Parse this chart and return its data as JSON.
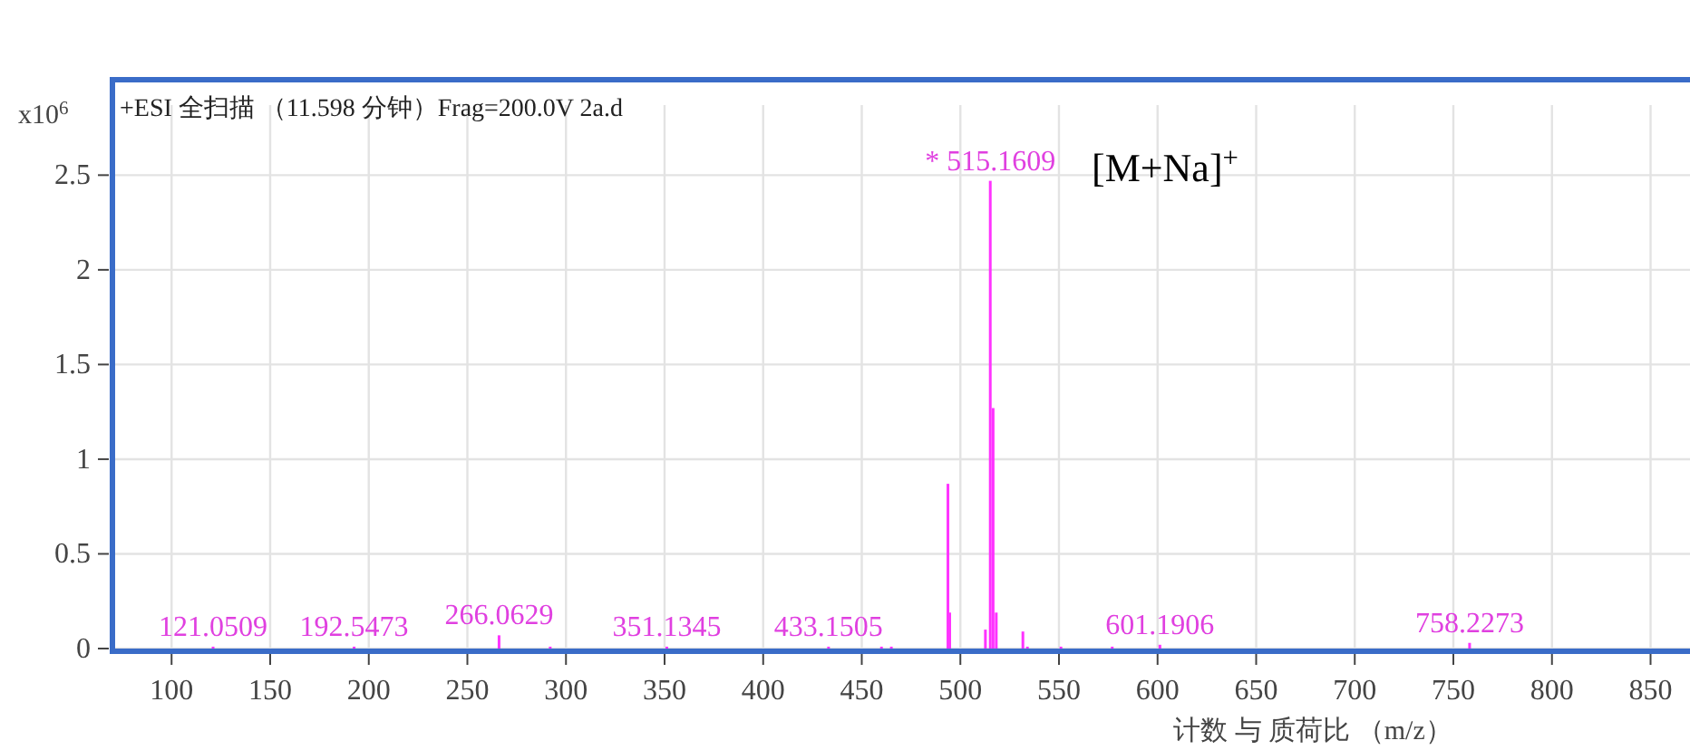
{
  "chart_data": {
    "type": "bar",
    "title": "+ESI 全扫描 （11.598 分钟）Frag=200.0V 2a.d",
    "xlabel": "计数 与 质荷比 （m/z）",
    "ylabel": "x10$^{6}$",
    "x": [
      121.05,
      192.55,
      266.06,
      292.0,
      351.13,
      433.15,
      460.0,
      465.0,
      493.7,
      494.6,
      512.7,
      515.16,
      516.6,
      518.2,
      531.7,
      534.0,
      551.0,
      577.0,
      601.19,
      758.23
    ],
    "values": [
      0.01,
      0.01,
      0.07,
      0.01,
      0.01,
      0.01,
      0.01,
      0.01,
      0.87,
      0.19,
      0.1,
      2.47,
      1.27,
      0.19,
      0.09,
      0.01,
      0.01,
      0.01,
      0.02,
      0.03
    ],
    "color": "#ff33ff",
    "xlim": [
      70,
      870
    ],
    "ylim": [
      0,
      2.87
    ],
    "xticks": [
      100,
      150,
      200,
      250,
      300,
      350,
      400,
      450,
      500,
      550,
      600,
      650,
      700,
      750,
      800,
      850
    ],
    "yticks": [
      0,
      0.5,
      1,
      1.5,
      2,
      2.5
    ],
    "grid": true,
    "annotations": [
      {
        "text": "121.0509",
        "x": 121.05,
        "y": 0.01
      },
      {
        "text": "192.5473",
        "x": 192.55,
        "y": 0.01
      },
      {
        "text": "266.0629",
        "x": 266.06,
        "y": 0.07
      },
      {
        "text": "351.1345",
        "x": 351.13,
        "y": 0.01
      },
      {
        "text": "433.1505",
        "x": 433.15,
        "y": 0.01
      },
      {
        "text": "* 515.1609",
        "x": 515.16,
        "y": 2.47
      },
      {
        "text": "601.1906",
        "x": 601.19,
        "y": 0.02
      },
      {
        "text": "758.2273",
        "x": 758.23,
        "y": 0.03
      },
      "[M+Na]$^{+}$"
    ]
  }
}
